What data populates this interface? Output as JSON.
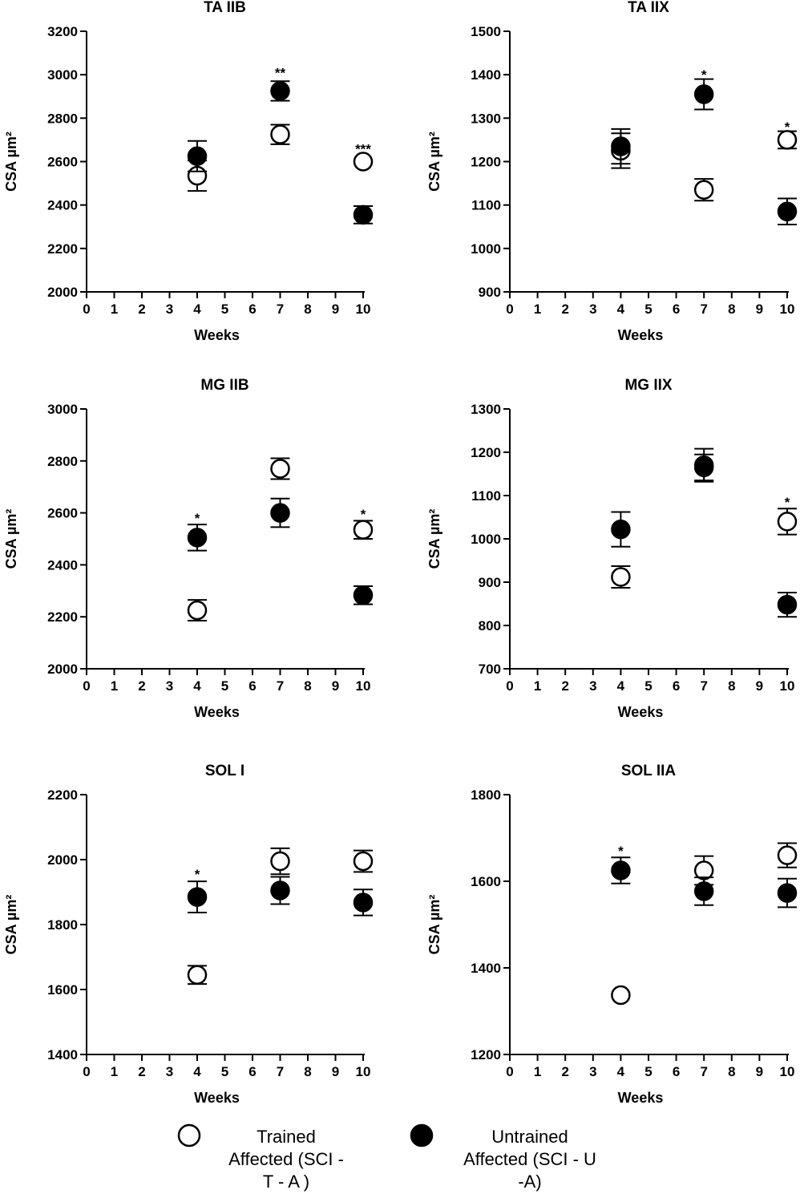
{
  "chart_data": [
    {
      "type": "scatter",
      "title": "TA IIB",
      "xlabel": "Weeks",
      "ylabel": "CSA µm²",
      "xlim": [
        0,
        10
      ],
      "ylim": [
        2000,
        3200
      ],
      "xticks": [
        "0",
        "1",
        "2",
        "3",
        "4",
        "5",
        "6",
        "7",
        "8",
        "9",
        "10"
      ],
      "yticks": [
        "2000",
        "2200",
        "2400",
        "2600",
        "2800",
        "3000",
        "3200"
      ],
      "series": [
        {
          "name": "Trained Affected (SCI - T - A )",
          "marker": "open-circle",
          "points": [
            {
              "x": 4,
              "y": 2535,
              "err": 70
            },
            {
              "x": 7,
              "y": 2725,
              "err": 45
            },
            {
              "x": 10,
              "y": 2600,
              "err": 0
            }
          ]
        },
        {
          "name": "Untrained Affected (SCI - U -A)",
          "marker": "filled-circle",
          "points": [
            {
              "x": 4,
              "y": 2625,
              "err": 70
            },
            {
              "x": 7,
              "y": 2925,
              "err": 45
            },
            {
              "x": 10,
              "y": 2355,
              "err": 40
            }
          ]
        }
      ],
      "annotations": [
        {
          "x": 7,
          "text": "**",
          "y": 3010
        },
        {
          "x": 10,
          "text": "***",
          "y": 2660
        }
      ]
    },
    {
      "type": "scatter",
      "title": "TA IIX",
      "xlabel": "Weeks",
      "ylabel": "CSA µm²",
      "xlim": [
        0,
        10
      ],
      "ylim": [
        900,
        1500
      ],
      "xticks": [
        "0",
        "1",
        "2",
        "3",
        "4",
        "5",
        "6",
        "7",
        "8",
        "9",
        "10"
      ],
      "yticks": [
        "900",
        "1000",
        "1100",
        "1200",
        "1300",
        "1400",
        "1500"
      ],
      "series": [
        {
          "name": "Trained Affected (SCI - T - A )",
          "marker": "open-circle",
          "points": [
            {
              "x": 4,
              "y": 1225,
              "err": 40
            },
            {
              "x": 7,
              "y": 1135,
              "err": 25
            },
            {
              "x": 10,
              "y": 1250,
              "err": 20
            }
          ]
        },
        {
          "name": "Untrained Affected (SCI - U -A)",
          "marker": "filled-circle",
          "points": [
            {
              "x": 4,
              "y": 1235,
              "err": 40
            },
            {
              "x": 7,
              "y": 1355,
              "err": 35
            },
            {
              "x": 10,
              "y": 1085,
              "err": 30
            }
          ]
        }
      ],
      "annotations": [
        {
          "x": 7,
          "text": "*",
          "y": 1400
        },
        {
          "x": 10,
          "text": "*",
          "y": 1280
        }
      ]
    },
    {
      "type": "scatter",
      "title": "MG IIB",
      "xlabel": "Weeks",
      "ylabel": "CSA µm²",
      "xlim": [
        0,
        10
      ],
      "ylim": [
        2000,
        3000
      ],
      "xticks": [
        "0",
        "1",
        "2",
        "3",
        "4",
        "5",
        "6",
        "7",
        "8",
        "9",
        "10"
      ],
      "yticks": [
        "2000",
        "2200",
        "2400",
        "2600",
        "2800",
        "3000"
      ],
      "series": [
        {
          "name": "Trained Affected (SCI - T - A )",
          "marker": "open-circle",
          "points": [
            {
              "x": 4,
              "y": 2225,
              "err": 40
            },
            {
              "x": 7,
              "y": 2770,
              "err": 40
            },
            {
              "x": 10,
              "y": 2535,
              "err": 35
            }
          ]
        },
        {
          "name": "Untrained Affected (SCI - U -A)",
          "marker": "filled-circle",
          "points": [
            {
              "x": 4,
              "y": 2505,
              "err": 50
            },
            {
              "x": 7,
              "y": 2600,
              "err": 55
            },
            {
              "x": 10,
              "y": 2283,
              "err": 35
            }
          ]
        }
      ],
      "annotations": [
        {
          "x": 4,
          "text": "*",
          "y": 2580
        },
        {
          "x": 10,
          "text": "*",
          "y": 2595
        }
      ]
    },
    {
      "type": "scatter",
      "title": "MG IIX",
      "xlabel": "Weeks",
      "ylabel": "CSA µm²",
      "xlim": [
        0,
        10
      ],
      "ylim": [
        700,
        1300
      ],
      "xticks": [
        "0",
        "1",
        "2",
        "3",
        "4",
        "5",
        "6",
        "7",
        "8",
        "9",
        "10"
      ],
      "yticks": [
        "700",
        "800",
        "900",
        "1000",
        "1100",
        "1200",
        "1300"
      ],
      "series": [
        {
          "name": "Trained Affected (SCI - T - A )",
          "marker": "open-circle",
          "points": [
            {
              "x": 4,
              "y": 912,
              "err": 25
            },
            {
              "x": 7,
              "y": 1165,
              "err": 30
            },
            {
              "x": 10,
              "y": 1040,
              "err": 30
            }
          ]
        },
        {
          "name": "Untrained Affected (SCI - U -A)",
          "marker": "filled-circle",
          "points": [
            {
              "x": 4,
              "y": 1022,
              "err": 40
            },
            {
              "x": 7,
              "y": 1170,
              "err": 38
            },
            {
              "x": 10,
              "y": 848,
              "err": 28
            }
          ]
        }
      ],
      "annotations": [
        {
          "x": 10,
          "text": "*",
          "y": 1085
        }
      ]
    },
    {
      "type": "scatter",
      "title": "SOL I",
      "xlabel": "Weeks",
      "ylabel": "CSA µm²",
      "xlim": [
        0,
        10
      ],
      "ylim": [
        1400,
        2200
      ],
      "xticks": [
        "0",
        "1",
        "2",
        "3",
        "4",
        "5",
        "6",
        "7",
        "8",
        "9",
        "10"
      ],
      "yticks": [
        "1400",
        "1600",
        "1800",
        "2000",
        "2200"
      ],
      "series": [
        {
          "name": "Trained Affected (SCI - T - A )",
          "marker": "open-circle",
          "points": [
            {
              "x": 4,
              "y": 1645,
              "err": 28
            },
            {
              "x": 7,
              "y": 1995,
              "err": 40
            },
            {
              "x": 10,
              "y": 1995,
              "err": 33
            }
          ]
        },
        {
          "name": "Untrained Affected (SCI - U -A)",
          "marker": "filled-circle",
          "points": [
            {
              "x": 4,
              "y": 1885,
              "err": 48
            },
            {
              "x": 7,
              "y": 1905,
              "err": 42
            },
            {
              "x": 10,
              "y": 1868,
              "err": 40
            }
          ]
        }
      ],
      "annotations": [
        {
          "x": 4,
          "text": "*",
          "y": 1955
        }
      ]
    },
    {
      "type": "scatter",
      "title": "SOL IIA",
      "xlabel": "Weeks",
      "ylabel": "CSA µm²",
      "xlim": [
        0,
        10
      ],
      "ylim": [
        1200,
        1800
      ],
      "xticks": [
        "0",
        "1",
        "2",
        "3",
        "4",
        "5",
        "6",
        "7",
        "8",
        "9",
        "10"
      ],
      "yticks": [
        "1200",
        "1400",
        "1600",
        "1800"
      ],
      "series": [
        {
          "name": "Trained Affected (SCI - T - A )",
          "marker": "open-circle",
          "points": [
            {
              "x": 4,
              "y": 1337,
              "err": 0
            },
            {
              "x": 7,
              "y": 1625,
              "err": 33
            },
            {
              "x": 10,
              "y": 1660,
              "err": 28
            }
          ]
        },
        {
          "name": "Untrained Affected (SCI - U -A)",
          "marker": "filled-circle",
          "points": [
            {
              "x": 4,
              "y": 1625,
              "err": 30
            },
            {
              "x": 7,
              "y": 1577,
              "err": 32
            },
            {
              "x": 10,
              "y": 1573,
              "err": 33
            }
          ]
        }
      ],
      "annotations": [
        {
          "x": 4,
          "text": "*",
          "y": 1670
        }
      ]
    }
  ],
  "legend": {
    "items": [
      {
        "marker": "open-circle",
        "lines": [
          "Trained",
          "Affected (SCI -",
          "T - A )"
        ]
      },
      {
        "marker": "filled-circle",
        "lines": [
          "Untrained",
          "Affected (SCI - U",
          "-A)"
        ]
      }
    ]
  }
}
